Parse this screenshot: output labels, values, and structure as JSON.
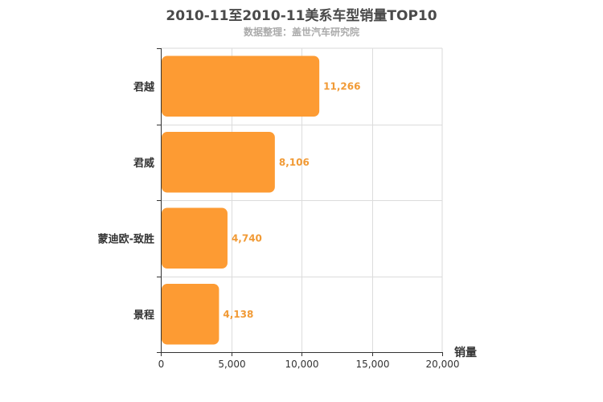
{
  "chart_data": {
    "type": "bar",
    "orientation": "horizontal",
    "title": "2010-11至2010-11美系车型销量TOP10",
    "subtitle": "数据整理：盖世汽车研究院",
    "categories": [
      "君越",
      "君威",
      "蒙迪欧-致胜",
      "景程"
    ],
    "values": [
      11266,
      8106,
      4740,
      4138
    ],
    "value_labels": [
      "11,266",
      "8,106",
      "4,740",
      "4,138"
    ],
    "xlabel": "销量",
    "ylabel": "",
    "xlim": [
      0,
      20000
    ],
    "xticks": [
      0,
      5000,
      10000,
      15000,
      20000
    ],
    "xtick_labels": [
      "0",
      "5,000",
      "10,000",
      "15,000",
      "20,000"
    ],
    "grid": true,
    "bar_color": "#fd9b33",
    "label_color": "#f19a35"
  }
}
